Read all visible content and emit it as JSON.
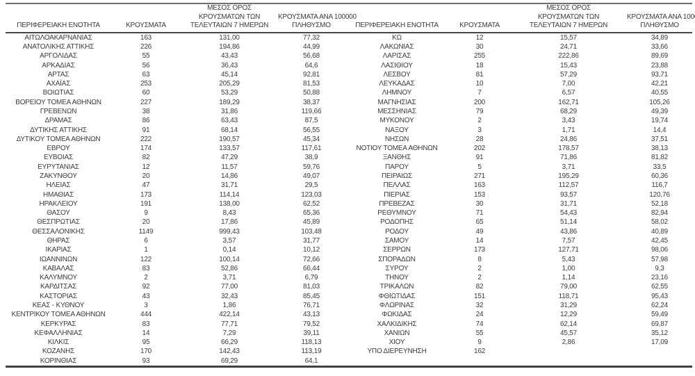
{
  "headers": {
    "region": "ΠΕΡΙΦΕΡΕΙΑΚΗ ΕΝΟΤΗΤΑ",
    "cases": "ΚΡΟΥΣΜΑΤΑ",
    "avg7_lines": [
      "ΜΕΣΟΣ ΟΡΟΣ",
      "ΚΡΟΥΣΜΑΤΩΝ ΤΩΝ",
      "ΤΕΛΕΥΤΑΙΩΝ 7 ΗΜΕΡΩΝ"
    ],
    "per100k_lines": [
      "ΚΡΟΥΣΜΑΤΑ ΑΝΑ 100000",
      "ΠΛΗΘΥΣΜΟ"
    ]
  },
  "colors": {
    "text": "#3b3b3b",
    "border_top": "#6f6f6f",
    "border_header": "#474747",
    "border_bottom": "#3e4248"
  },
  "left_rows": [
    [
      "ΑΙΤΩΛΟΑΚΑΡΝΑΝΙΑΣ",
      "163",
      "131,00",
      "77,32"
    ],
    [
      "ΑΝΑΤΟΛΙΚΗΣ ΑΤΤΙΚΗΣ",
      "226",
      "194,86",
      "44,99"
    ],
    [
      "ΑΡΓΟΛΙΔΑΣ",
      "55",
      "43,43",
      "56,68"
    ],
    [
      "ΑΡΚΑΔΙΑΣ",
      "56",
      "36,43",
      "64,6"
    ],
    [
      "ΑΡΤΑΣ",
      "63",
      "45,14",
      "92,81"
    ],
    [
      "ΑΧΑΪΑΣ",
      "253",
      "205,29",
      "81,53"
    ],
    [
      "ΒΟΙΩΤΙΑΣ",
      "60",
      "53,29",
      "50,88"
    ],
    [
      "ΒΟΡΕΙΟΥ ΤΟΜΕΑ ΑΘΗΝΩΝ",
      "227",
      "189,29",
      "38,37"
    ],
    [
      "ΓΡΕΒΕΝΩΝ",
      "38",
      "31,86",
      "119,66"
    ],
    [
      "ΔΡΑΜΑΣ",
      "86",
      "63,43",
      "87,5"
    ],
    [
      "ΔΥΤΙΚΗΣ ΑΤΤΙΚΗΣ",
      "91",
      "68,14",
      "56,55"
    ],
    [
      "ΔΥΤΙΚΟΥ ΤΟΜΕΑ ΑΘΗΝΩΝ",
      "222",
      "190,57",
      "45,34"
    ],
    [
      "ΕΒΡΟΥ",
      "174",
      "133,57",
      "117,61"
    ],
    [
      "ΕΥΒΟΙΑΣ",
      "82",
      "47,29",
      "38,9"
    ],
    [
      "ΕΥΡΥΤΑΝΙΑΣ",
      "12",
      "11,57",
      "59,76"
    ],
    [
      "ΖΑΚΥΝΘΟΥ",
      "20",
      "14,86",
      "49,07"
    ],
    [
      "ΗΛΕΙΑΣ",
      "47",
      "31,71",
      "29,5"
    ],
    [
      "ΗΜΑΘΙΑΣ",
      "173",
      "114,14",
      "123,03"
    ],
    [
      "ΗΡΑΚΛΕΙΟΥ",
      "191",
      "138,00",
      "62,52"
    ],
    [
      "ΘΑΣΟΥ",
      "9",
      "8,43",
      "65,36"
    ],
    [
      "ΘΕΣΠΡΩΤΙΑΣ",
      "20",
      "17,86",
      "45,89"
    ],
    [
      "ΘΕΣΣΑΛΟΝΙΚΗΣ",
      "1149",
      "999,43",
      "103,48"
    ],
    [
      "ΘΗΡΑΣ",
      "6",
      "3,57",
      "31,77"
    ],
    [
      "ΙΚΑΡΙΑΣ",
      "1",
      "0,14",
      "10,12"
    ],
    [
      "ΙΩΑΝΝΙΝΩΝ",
      "122",
      "100,14",
      "72,66"
    ],
    [
      "ΚΑΒΑΛΑΣ",
      "83",
      "52,86",
      "66,44"
    ],
    [
      "ΚΑΛΥΜΝΟΥ",
      "2",
      "3,71",
      "6,79"
    ],
    [
      "ΚΑΡΔΙΤΣΑΣ",
      "92",
      "77,00",
      "81,03"
    ],
    [
      "ΚΑΣΤΟΡΙΑΣ",
      "43",
      "32,43",
      "85,45"
    ],
    [
      "ΚΕΑΣ - ΚΥΘΝΟΥ",
      "3",
      "1,86",
      "76,71"
    ],
    [
      "ΚΕΝΤΡΙΚΟΥ ΤΟΜΕΑ ΑΘΗΝΩΝ",
      "444",
      "422,14",
      "43,13"
    ],
    [
      "ΚΕΡΚΥΡΑΣ",
      "83",
      "77,71",
      "79,52"
    ],
    [
      "ΚΕΦΑΛΛΗΝΙΑΣ",
      "14",
      "7,29",
      "39,11"
    ],
    [
      "ΚΙΛΚΙΣ",
      "95",
      "66,29",
      "118,13"
    ],
    [
      "ΚΟΖΑΝΗΣ",
      "170",
      "142,43",
      "113,19"
    ],
    [
      "ΚΟΡΙΝΘΙΑΣ",
      "93",
      "69,29",
      "64,1"
    ]
  ],
  "right_rows": [
    [
      "ΚΩ",
      "12",
      "15,57",
      "34,89"
    ],
    [
      "ΛΑΚΩΝΙΑΣ",
      "30",
      "24,71",
      "33,66"
    ],
    [
      "ΛΑΡΙΣΑΣ",
      "255",
      "222,86",
      "89,69"
    ],
    [
      "ΛΑΣΙΘΙΟΥ",
      "18",
      "15,43",
      "23,88"
    ],
    [
      "ΛΕΣΒΟΥ",
      "81",
      "57,29",
      "93,71"
    ],
    [
      "ΛΕΥΚΑΔΑΣ",
      "10",
      "7,00",
      "42,21"
    ],
    [
      "ΛΗΜΝΟΥ",
      "7",
      "6,57",
      "40,55"
    ],
    [
      "ΜΑΓΝΗΣΙΑΣ",
      "200",
      "162,71",
      "105,26"
    ],
    [
      "ΜΕΣΣΗΝΙΑΣ",
      "79",
      "68,29",
      "49,39"
    ],
    [
      "ΜΥΚΟΝΟΥ",
      "2",
      "3,43",
      "19,74"
    ],
    [
      "ΝΑΞΟΥ",
      "3",
      "1,71",
      "14,4"
    ],
    [
      "ΝΗΣΩΝ",
      "28",
      "24,86",
      "37,51"
    ],
    [
      "ΝΟΤΙΟΥ ΤΟΜΕΑ ΑΘΗΝΩΝ",
      "202",
      "178,57",
      "38,13"
    ],
    [
      "ΞΑΝΘΗΣ",
      "91",
      "71,86",
      "81,82"
    ],
    [
      "ΠΑΡΟΥ",
      "5",
      "3,71",
      "33,5"
    ],
    [
      "ΠΕΙΡΑΙΩΣ",
      "271",
      "195,29",
      "60,36"
    ],
    [
      "ΠΕΛΛΑΣ",
      "163",
      "112,57",
      "116,7"
    ],
    [
      "ΠΙΕΡΙΑΣ",
      "153",
      "93,57",
      "120,76"
    ],
    [
      "ΠΡΕΒΕΖΑΣ",
      "30",
      "31,71",
      "52,18"
    ],
    [
      "ΡΕΘΥΜΝΟΥ",
      "71",
      "54,43",
      "82,94"
    ],
    [
      "ΡΟΔΟΠΗΣ",
      "65",
      "51,14",
      "58,02"
    ],
    [
      "ΡΟΔΟΥ",
      "49",
      "43,86",
      "40,89"
    ],
    [
      "ΣΑΜΟΥ",
      "14",
      "7,57",
      "42,45"
    ],
    [
      "ΣΕΡΡΩΝ",
      "173",
      "127,71",
      "98,06"
    ],
    [
      "ΣΠΟΡΑΔΩΝ",
      "8",
      "5,43",
      "57,98"
    ],
    [
      "ΣΥΡΟΥ",
      "2",
      "1,00",
      "9,3"
    ],
    [
      "ΤΗΝΟΥ",
      "2",
      "1,14",
      "23,16"
    ],
    [
      "ΤΡΙΚΑΛΩΝ",
      "82",
      "79,00",
      "62,55"
    ],
    [
      "ΦΘΙΩΤΙΔΑΣ",
      "151",
      "118,71",
      "95,43"
    ],
    [
      "ΦΛΩΡΙΝΑΣ",
      "32",
      "31,29",
      "62,24"
    ],
    [
      "ΦΩΚΙΔΑΣ",
      "24",
      "12,29",
      "59,49"
    ],
    [
      "ΧΑΛΚΙΔΙΚΗΣ",
      "74",
      "62,14",
      "69,87"
    ],
    [
      "ΧΑΝΙΩΝ",
      "55",
      "45,57",
      "35,12"
    ],
    [
      "ΧΙΟΥ",
      "9",
      "2,86",
      "17,09"
    ],
    [
      "ΥΠΟ ΔΙΕΡΕΥΝΗΣΗ",
      "162",
      "",
      ""
    ],
    [
      "",
      "",
      "",
      ""
    ]
  ]
}
